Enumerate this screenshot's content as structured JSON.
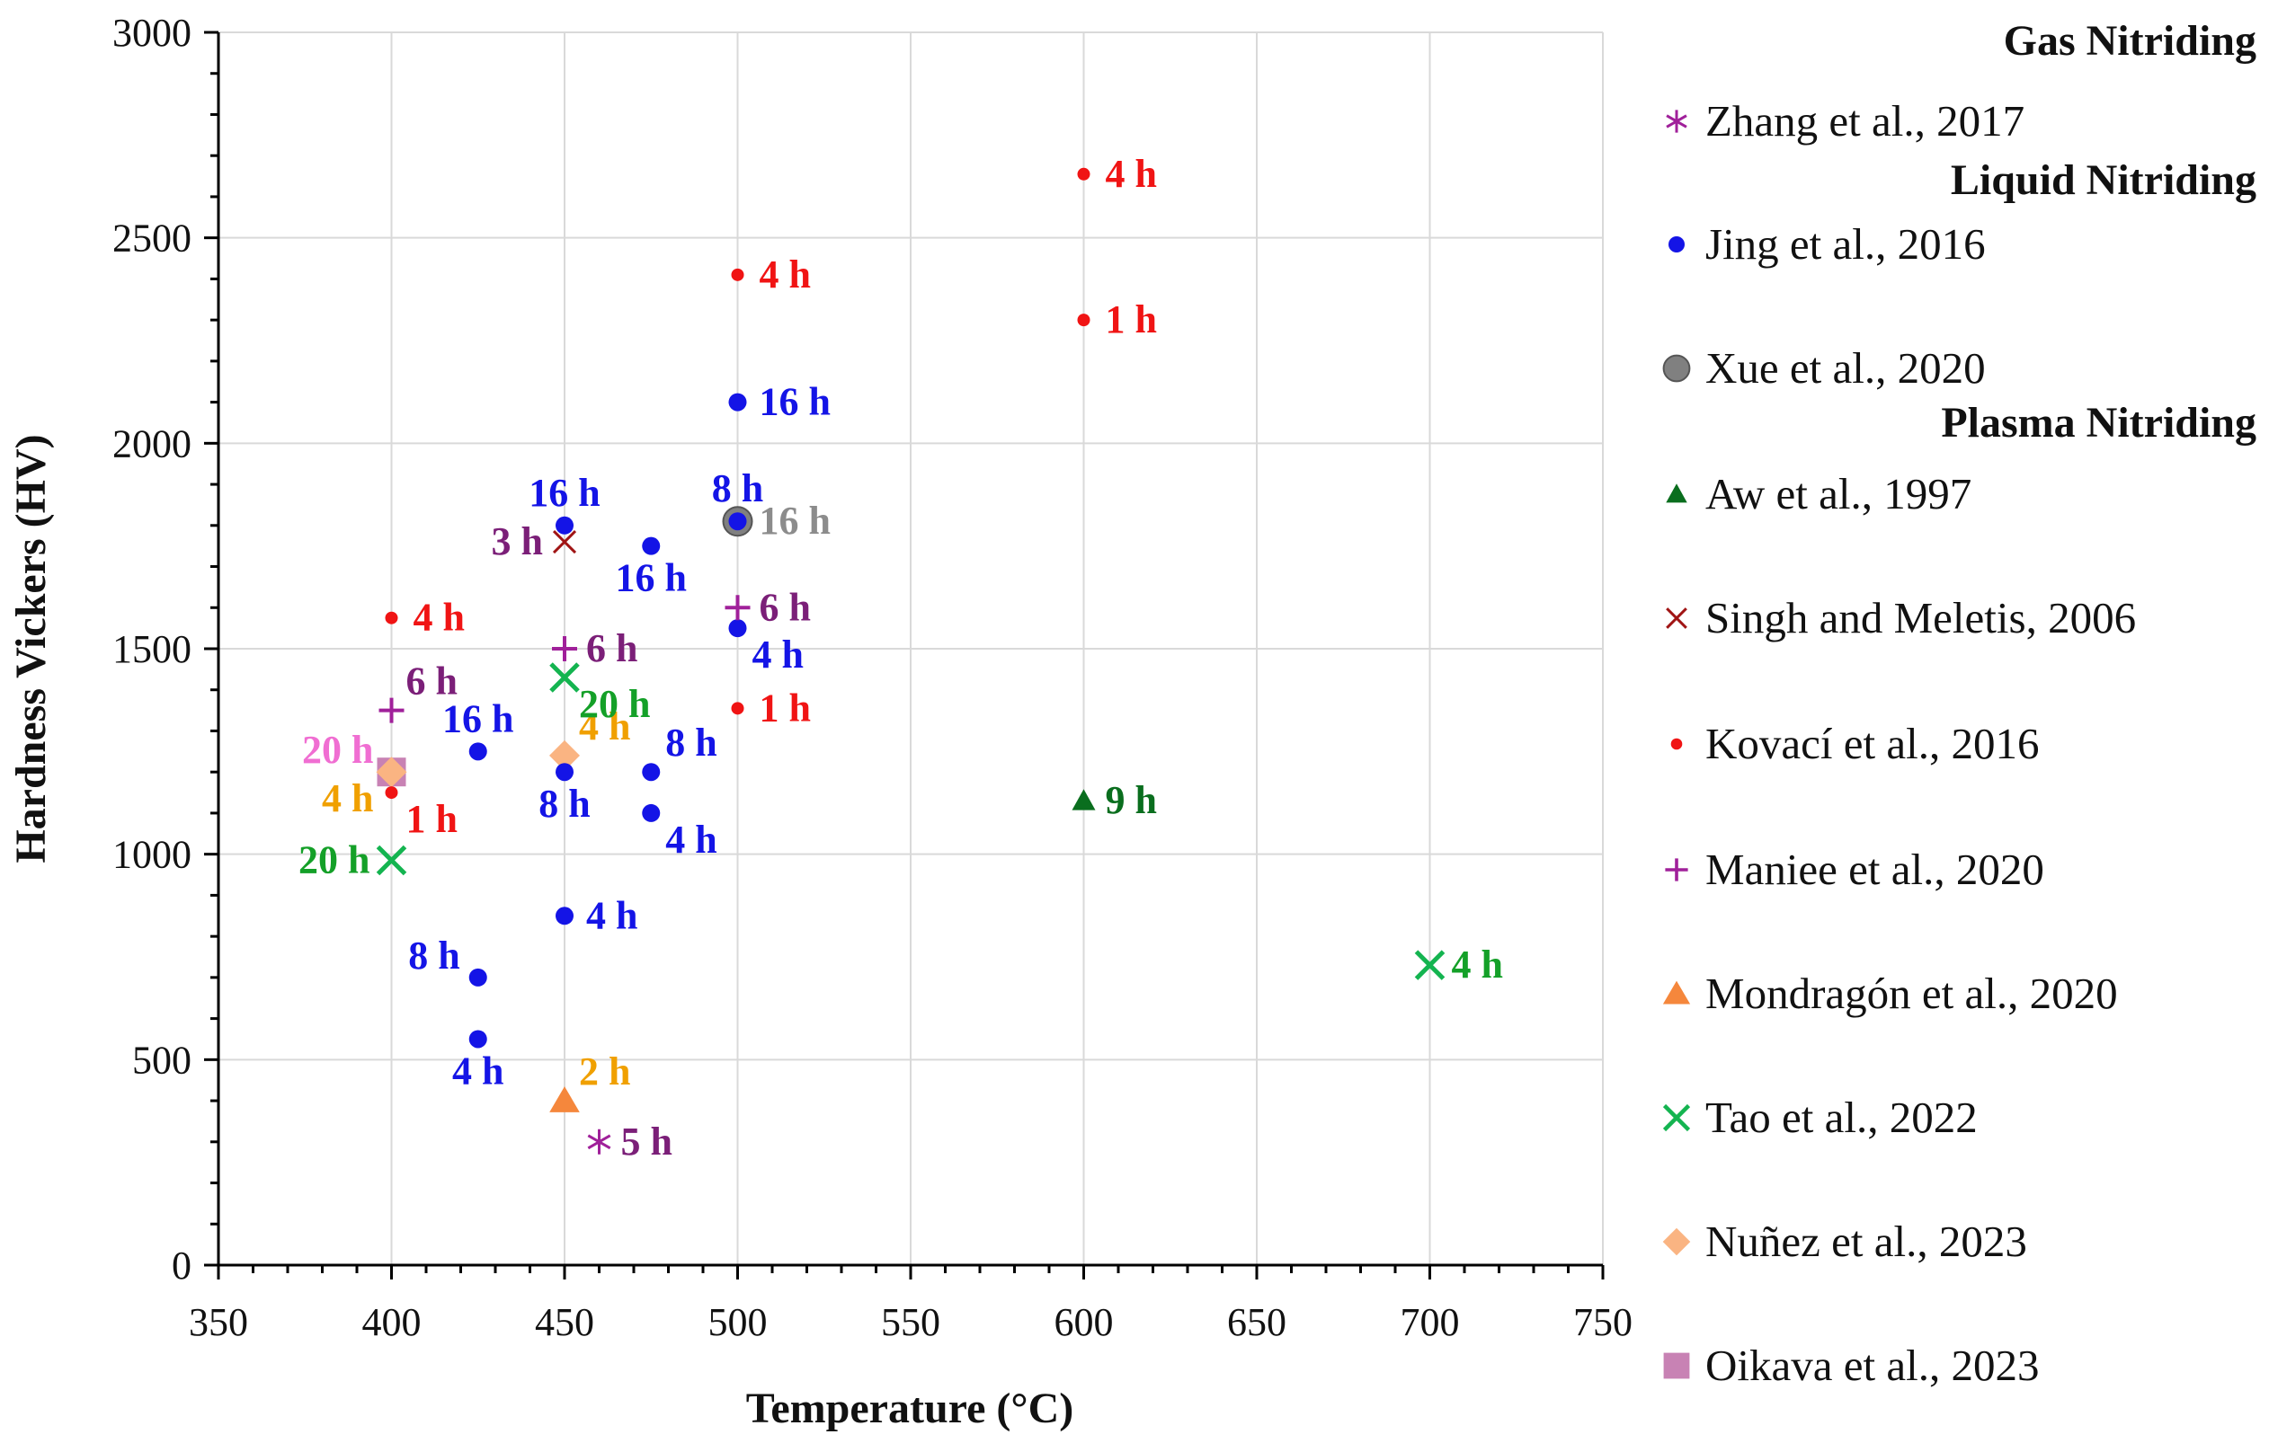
{
  "chart_data": {
    "type": "scatter",
    "xlabel": "Temperature (°C)",
    "ylabel": "Hardness Vickers (HV)",
    "xlim": [
      350,
      750
    ],
    "ylim": [
      0,
      3000
    ],
    "xticks": [
      350,
      400,
      450,
      500,
      550,
      600,
      650,
      700,
      750
    ],
    "yticks": [
      0,
      500,
      1000,
      1500,
      2000,
      2500,
      3000
    ],
    "grid": true,
    "legend_position": "right",
    "legend": [
      {
        "kind": "group",
        "title": "Gas Nitriding"
      },
      {
        "kind": "entry",
        "series": "Zhang et al., 2017"
      },
      {
        "kind": "group",
        "title": "Liquid  Nitriding"
      },
      {
        "kind": "entry",
        "series": "Jing et al., 2016"
      },
      {
        "kind": "entry",
        "series": "Xue et al., 2020"
      },
      {
        "kind": "group",
        "title": "Plasma Nitriding"
      },
      {
        "kind": "entry",
        "series": "Aw et al., 1997"
      },
      {
        "kind": "entry",
        "series": "Singh and Meletis, 2006"
      },
      {
        "kind": "entry",
        "series": " Kovací et al., 2016"
      },
      {
        "kind": "entry",
        "series": "Maniee et al., 2020"
      },
      {
        "kind": "entry",
        "series": "Mondragón et al., 2020"
      },
      {
        "kind": "entry",
        "series": "Tao et al., 2022"
      },
      {
        "kind": "entry",
        "series": "Nuñez et al., 2023"
      },
      {
        "kind": "entry",
        "series": "Oikava et al., 2023"
      }
    ],
    "series": [
      {
        "name": "Zhang et al., 2017",
        "marker": "asterisk",
        "color": "#a0209a",
        "label_color": "#7b1f78",
        "points": [
          {
            "x": 460,
            "y": 300,
            "label": "5 h",
            "anchor": "right"
          }
        ]
      },
      {
        "name": "Jing et al., 2016",
        "marker": "circle",
        "color": "#1414e6",
        "label_color": "#1414e6",
        "points": [
          {
            "x": 425,
            "y": 550,
            "label": "4 h",
            "anchor": "below"
          },
          {
            "x": 425,
            "y": 700,
            "label": "8 h",
            "anchor": "upper-left"
          },
          {
            "x": 425,
            "y": 1250,
            "label": "16 h",
            "anchor": "above"
          },
          {
            "x": 450,
            "y": 850,
            "label": "4 h",
            "anchor": "right"
          },
          {
            "x": 450,
            "y": 1200,
            "label": "8 h",
            "anchor": "below"
          },
          {
            "x": 450,
            "y": 1800,
            "label": "16 h",
            "anchor": "above"
          },
          {
            "x": 475,
            "y": 1100,
            "label": "4 h",
            "anchor": "lower-right"
          },
          {
            "x": 475,
            "y": 1200,
            "label": "8 h",
            "anchor": "upper-right"
          },
          {
            "x": 475,
            "y": 1750,
            "label": "16 h",
            "anchor": "below"
          },
          {
            "x": 500,
            "y": 1550,
            "label": "4 h",
            "anchor": "lower-right"
          },
          {
            "x": 500,
            "y": 1810,
            "label": "8 h",
            "anchor": "above"
          },
          {
            "x": 500,
            "y": 2100,
            "label": "16 h",
            "anchor": "right"
          }
        ]
      },
      {
        "name": "Xue et al., 2020",
        "marker": "big-circle",
        "color": "#808080",
        "label_color": "#8c8c8c",
        "points": [
          {
            "x": 500,
            "y": 1810,
            "label": "16 h",
            "anchor": "right"
          }
        ]
      },
      {
        "name": "Aw et al., 1997",
        "marker": "triangle",
        "color": "#0a6e1e",
        "label_color": "#0a6e1e",
        "points": [
          {
            "x": 600,
            "y": 1130,
            "label": "9 h",
            "anchor": "right"
          }
        ]
      },
      {
        "name": "Singh and Meletis, 2006",
        "marker": "x-thin",
        "color": "#a01414",
        "label_color": "#7b1f78",
        "points": [
          {
            "x": 450,
            "y": 1760,
            "label": "3 h",
            "anchor": "left"
          }
        ]
      },
      {
        "name": " Kovací et al., 2016",
        "marker": "dot",
        "color": "#f01414",
        "label_color": "#f01414",
        "points": [
          {
            "x": 400,
            "y": 1150,
            "label": "1 h",
            "anchor": "lower-right"
          },
          {
            "x": 400,
            "y": 1575,
            "label": "4 h",
            "anchor": "right"
          },
          {
            "x": 500,
            "y": 1355,
            "label": "1 h",
            "anchor": "right"
          },
          {
            "x": 500,
            "y": 2410,
            "label": "4 h",
            "anchor": "right"
          },
          {
            "x": 600,
            "y": 2300,
            "label": "1 h",
            "anchor": "right"
          },
          {
            "x": 600,
            "y": 2655,
            "label": "4 h",
            "anchor": "right"
          }
        ]
      },
      {
        "name": "Maniee et al., 2020",
        "marker": "plus",
        "color": "#a0209a",
        "label_color": "#7b1f78",
        "points": [
          {
            "x": 400,
            "y": 1350,
            "label": "6 h",
            "anchor": "upper-right"
          },
          {
            "x": 450,
            "y": 1500,
            "label": "6 h",
            "anchor": "right"
          },
          {
            "x": 500,
            "y": 1600,
            "label": "6 h",
            "anchor": "right"
          }
        ]
      },
      {
        "name": "Mondragón et al., 2020",
        "marker": "triangle-big",
        "color": "#f5873c",
        "label_color": "#f0a000",
        "points": [
          {
            "x": 450,
            "y": 400,
            "label": "2 h",
            "anchor": "upper-right"
          }
        ]
      },
      {
        "name": "Tao et al., 2022",
        "marker": "x-bold",
        "color": "#14b450",
        "label_color": "#14a028",
        "points": [
          {
            "x": 400,
            "y": 985,
            "label": "20 h",
            "anchor": "left"
          },
          {
            "x": 450,
            "y": 1430,
            "label": "20 h",
            "anchor": "lower-right"
          },
          {
            "x": 700,
            "y": 730,
            "label": "4 h",
            "anchor": "right"
          }
        ]
      },
      {
        "name": "Nuñez et al., 2023",
        "marker": "diamond",
        "color": "#fab482",
        "label_color": "#f0a000",
        "points": [
          {
            "x": 400,
            "y": 1200,
            "label": "4 h",
            "anchor": "lower-left"
          },
          {
            "x": 450,
            "y": 1240,
            "label": "4 h",
            "anchor": "upper-right"
          }
        ]
      },
      {
        "name": "Oikava et al., 2023",
        "marker": "square",
        "color": "#c882b4",
        "label_color": "#f06ed2",
        "points": [
          {
            "x": 400,
            "y": 1200,
            "label": "20 h",
            "anchor": "upper-left"
          }
        ]
      }
    ]
  }
}
